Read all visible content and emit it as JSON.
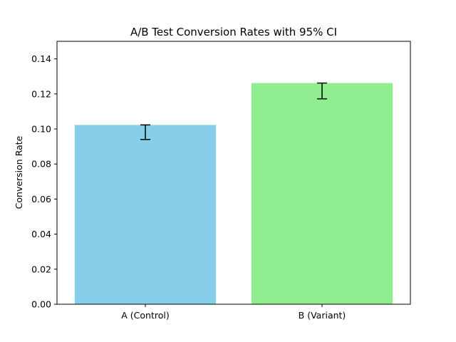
{
  "chart_data": {
    "type": "bar",
    "title": "A/B Test Conversion Rates with 95% CI",
    "xlabel": "",
    "ylabel": "Conversion Rate",
    "categories": [
      "A (Control)",
      "B (Variant)"
    ],
    "values": [
      0.1023,
      0.1262
    ],
    "error_low": [
      0.094,
      0.1172
    ],
    "error_high": [
      0.1023,
      0.1262
    ],
    "bar_colors": [
      "#87ceeb",
      "#90ee90"
    ],
    "ylim": [
      0,
      0.15
    ],
    "yticks": [
      0.0,
      0.02,
      0.04,
      0.06,
      0.08,
      0.1,
      0.12,
      0.14
    ],
    "ytick_labels": [
      "0.00",
      "0.02",
      "0.04",
      "0.06",
      "0.08",
      "0.10",
      "0.12",
      "0.14"
    ],
    "grid": false,
    "legend": "none"
  }
}
